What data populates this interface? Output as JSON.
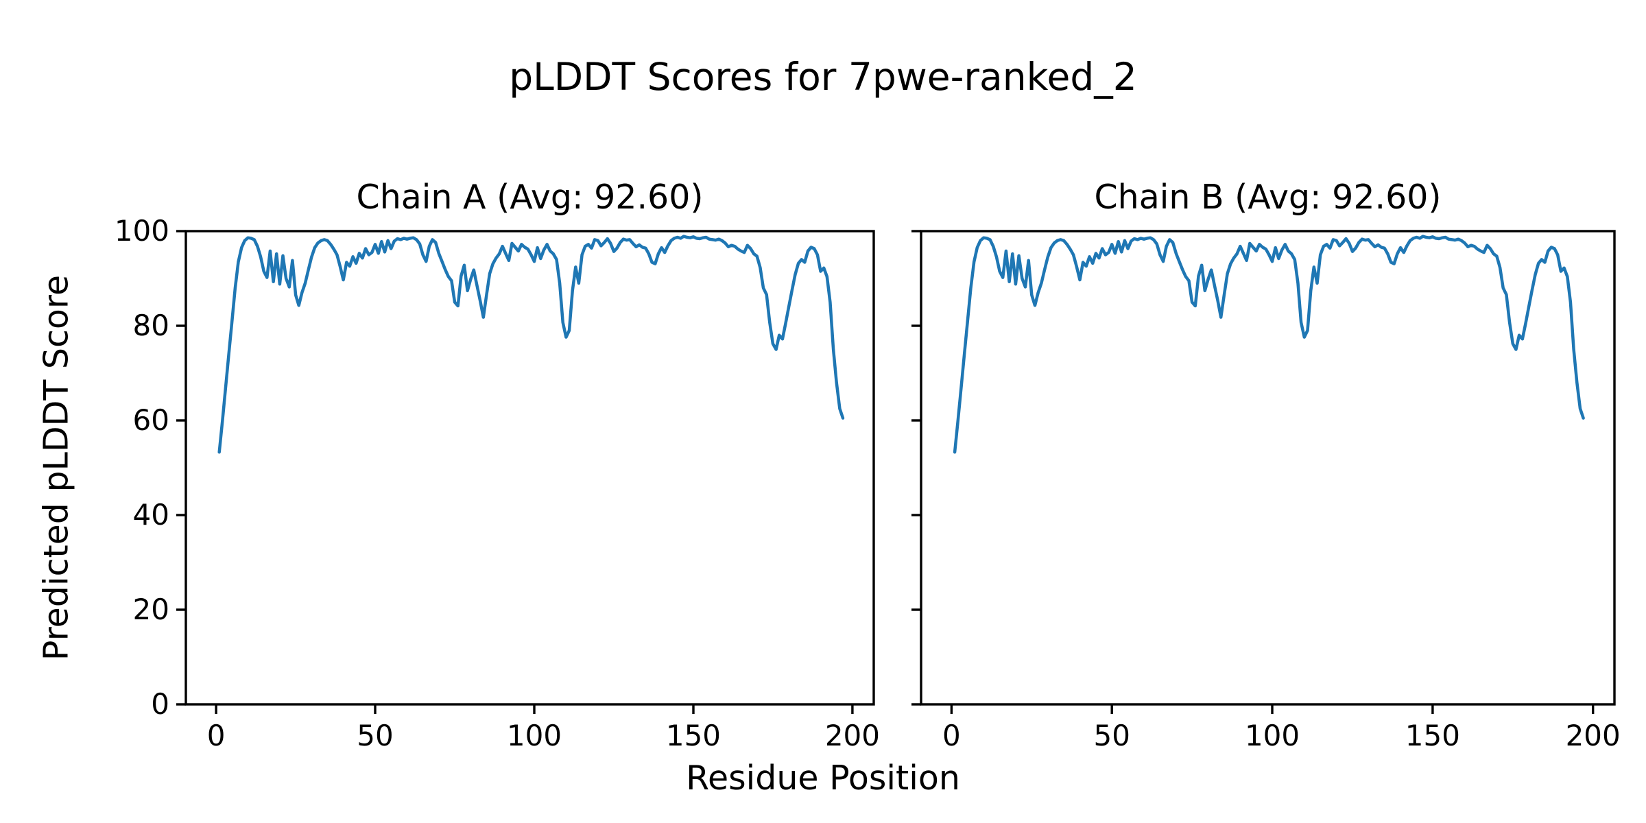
{
  "figure": {
    "background": "#ffffff",
    "text_color": "#000000"
  },
  "chart_data": {
    "type": "line",
    "suptitle": "pLDDT Scores for 7pwe-ranked_2",
    "xlabel": "Residue Position",
    "ylabel": "Predicted pLDDT Score",
    "xlim": [
      -9.5,
      206.7
    ],
    "ylim": [
      0,
      100
    ],
    "xticks": [
      0,
      50,
      100,
      150,
      200
    ],
    "yticks": [
      0,
      20,
      40,
      60,
      80,
      100
    ],
    "grid": false,
    "legend": "none",
    "line_color": "#1f77b4",
    "axis_color": "#000000",
    "subplots": [
      {
        "title": "Chain A (Avg: 92.60)",
        "chain": "A",
        "avg": 92.6,
        "series_ref": "shared_series",
        "show_y_tick_labels": true
      },
      {
        "title": "Chain B (Avg: 92.60)",
        "chain": "B",
        "avg": 92.6,
        "series_ref": "shared_series",
        "show_y_tick_labels": false
      }
    ],
    "shared_series": {
      "name": "pLDDT",
      "points": [
        [
          1,
          53.3
        ],
        [
          2,
          60
        ],
        [
          3,
          67
        ],
        [
          4,
          74
        ],
        [
          5,
          81
        ],
        [
          6,
          88
        ],
        [
          7,
          93.5
        ],
        [
          8,
          96.5
        ],
        [
          9,
          98
        ],
        [
          10,
          98.6
        ],
        [
          11,
          98.5
        ],
        [
          12,
          98.2
        ],
        [
          13,
          96.8
        ],
        [
          14,
          94.6
        ],
        [
          15,
          91.5
        ],
        [
          16,
          90.2
        ],
        [
          17,
          95.8
        ],
        [
          18,
          89.3
        ],
        [
          19,
          95.2
        ],
        [
          20,
          88.8
        ],
        [
          21,
          94.8
        ],
        [
          22,
          90
        ],
        [
          23,
          88.2
        ],
        [
          24,
          93.8
        ],
        [
          25,
          86.5
        ],
        [
          26,
          84.3
        ],
        [
          27,
          87
        ],
        [
          28,
          89
        ],
        [
          29,
          91.8
        ],
        [
          30,
          94.5
        ],
        [
          31,
          96.5
        ],
        [
          32,
          97.5
        ],
        [
          33,
          98
        ],
        [
          34,
          98.2
        ],
        [
          35,
          98
        ],
        [
          36,
          97.2
        ],
        [
          37,
          96.2
        ],
        [
          38,
          95
        ],
        [
          39,
          92.5
        ],
        [
          40,
          89.7
        ],
        [
          41,
          93.4
        ],
        [
          42,
          92.6
        ],
        [
          43,
          94.6
        ],
        [
          44,
          93.2
        ],
        [
          45,
          95.3
        ],
        [
          46,
          94.3
        ],
        [
          47,
          96.3
        ],
        [
          48,
          95
        ],
        [
          49,
          95.5
        ],
        [
          50,
          97.2
        ],
        [
          51,
          95.3
        ],
        [
          52,
          97.8
        ],
        [
          53,
          95.6
        ],
        [
          54,
          98
        ],
        [
          55,
          96.3
        ],
        [
          56,
          97.9
        ],
        [
          57,
          98.4
        ],
        [
          58,
          98.2
        ],
        [
          59,
          98.5
        ],
        [
          60,
          98.3
        ],
        [
          61,
          98.5
        ],
        [
          62,
          98.6
        ],
        [
          63,
          98.2
        ],
        [
          64,
          97.3
        ],
        [
          65,
          95
        ],
        [
          66,
          93.6
        ],
        [
          67,
          96.8
        ],
        [
          68,
          98.2
        ],
        [
          69,
          97.6
        ],
        [
          70,
          95.3
        ],
        [
          71,
          93.6
        ],
        [
          72,
          91.9
        ],
        [
          73,
          90.4
        ],
        [
          74,
          89.5
        ],
        [
          75,
          85
        ],
        [
          76,
          84.2
        ],
        [
          77,
          90.5
        ],
        [
          78,
          92.8
        ],
        [
          79,
          87.4
        ],
        [
          80,
          89.8
        ],
        [
          81,
          91.8
        ],
        [
          82,
          88.5
        ],
        [
          83,
          85.3
        ],
        [
          84,
          81.8
        ],
        [
          85,
          86.5
        ],
        [
          86,
          91
        ],
        [
          87,
          93.1
        ],
        [
          88,
          94.3
        ],
        [
          89,
          95.2
        ],
        [
          90,
          96.8
        ],
        [
          91,
          95.3
        ],
        [
          92,
          93.8
        ],
        [
          93,
          97.4
        ],
        [
          94,
          96.6
        ],
        [
          95,
          95.8
        ],
        [
          96,
          97.2
        ],
        [
          97,
          96.6
        ],
        [
          98,
          96.2
        ],
        [
          99,
          95
        ],
        [
          100,
          93.6
        ],
        [
          101,
          96.5
        ],
        [
          102,
          94.2
        ],
        [
          103,
          96
        ],
        [
          104,
          97.2
        ],
        [
          105,
          95.8
        ],
        [
          106,
          95.2
        ],
        [
          107,
          94
        ],
        [
          108,
          89
        ],
        [
          109,
          80.7
        ],
        [
          110,
          77.6
        ],
        [
          111,
          79
        ],
        [
          112,
          87.4
        ],
        [
          113,
          92.4
        ],
        [
          114,
          89
        ],
        [
          115,
          95
        ],
        [
          116,
          96.8
        ],
        [
          117,
          97.2
        ],
        [
          118,
          96.4
        ],
        [
          119,
          98.2
        ],
        [
          120,
          98
        ],
        [
          121,
          96.9
        ],
        [
          122,
          97.6
        ],
        [
          123,
          98.4
        ],
        [
          124,
          97.4
        ],
        [
          125,
          95.7
        ],
        [
          126,
          96.4
        ],
        [
          127,
          97.6
        ],
        [
          128,
          98.3
        ],
        [
          129,
          98.1
        ],
        [
          130,
          98.2
        ],
        [
          131,
          97.4
        ],
        [
          132,
          96.7
        ],
        [
          133,
          97.1
        ],
        [
          134,
          96.6
        ],
        [
          135,
          96.4
        ],
        [
          136,
          95.2
        ],
        [
          137,
          93.4
        ],
        [
          138,
          93.1
        ],
        [
          139,
          95.2
        ],
        [
          140,
          96.5
        ],
        [
          141,
          95.5
        ],
        [
          142,
          96.9
        ],
        [
          143,
          98
        ],
        [
          144,
          98.5
        ],
        [
          145,
          98.7
        ],
        [
          146,
          98.5
        ],
        [
          147,
          98.9
        ],
        [
          148,
          98.7
        ],
        [
          149,
          98.6
        ],
        [
          150,
          98.8
        ],
        [
          151,
          98.5
        ],
        [
          152,
          98.4
        ],
        [
          153,
          98.6
        ],
        [
          154,
          98.7
        ],
        [
          155,
          98.3
        ],
        [
          156,
          98.2
        ],
        [
          157,
          98.1
        ],
        [
          158,
          98.3
        ],
        [
          159,
          98
        ],
        [
          160,
          97.5
        ],
        [
          161,
          96.7
        ],
        [
          162,
          97
        ],
        [
          163,
          96.8
        ],
        [
          164,
          96.2
        ],
        [
          165,
          95.8
        ],
        [
          166,
          95.5
        ],
        [
          167,
          97
        ],
        [
          168,
          96.3
        ],
        [
          169,
          95.2
        ],
        [
          170,
          94.7
        ],
        [
          171,
          92.3
        ],
        [
          172,
          88
        ],
        [
          173,
          86.6
        ],
        [
          174,
          80.7
        ],
        [
          175,
          76.2
        ],
        [
          176,
          75
        ],
        [
          177,
          78
        ],
        [
          178,
          77.2
        ],
        [
          179,
          80.5
        ],
        [
          180,
          84
        ],
        [
          181,
          87.5
        ],
        [
          182,
          90.8
        ],
        [
          183,
          93.2
        ],
        [
          184,
          94
        ],
        [
          185,
          93.4
        ],
        [
          186,
          95.8
        ],
        [
          187,
          96.6
        ],
        [
          188,
          96.3
        ],
        [
          189,
          95
        ],
        [
          190,
          91.5
        ],
        [
          191,
          92.2
        ],
        [
          192,
          90.4
        ],
        [
          193,
          85
        ],
        [
          194,
          75
        ],
        [
          195,
          68
        ],
        [
          196,
          62.5
        ],
        [
          197,
          60.5
        ]
      ]
    }
  }
}
